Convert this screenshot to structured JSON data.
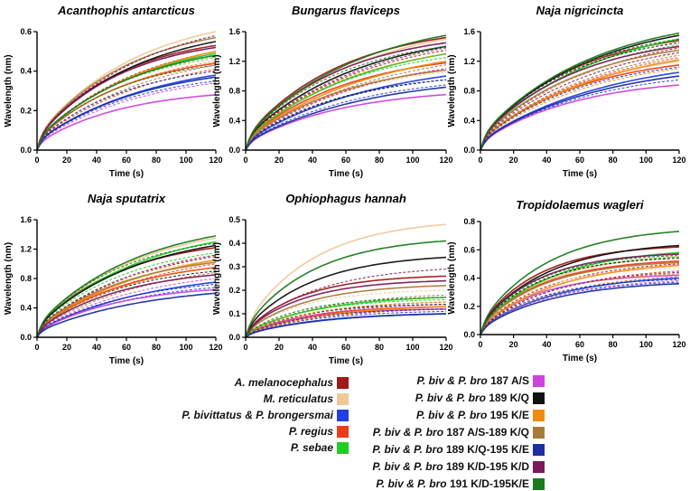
{
  "chart_data": [
    {
      "type": "line",
      "title": "Acanthophis antarcticus",
      "xlabel": "Time (s)",
      "ylabel": "Wavelength (nm)",
      "xlim": [
        0,
        120
      ],
      "ylim": [
        0,
        0.6
      ],
      "xticks": [
        0,
        20,
        40,
        60,
        80,
        100,
        120
      ],
      "yticks": [
        0.0,
        0.2,
        0.4,
        0.6
      ],
      "series_end_values": {
        "A. melanocephalus": [
          0.53,
          0.5
        ],
        "M. reticulatus": [
          0.6,
          0.46
        ],
        "P. bivittatus & P. brongersmai": [
          0.38,
          0.35
        ],
        "P. regius": [
          0.44,
          0.41
        ],
        "P. sebae": [
          0.49,
          0.47
        ],
        "P. biv & P. bro 187 A/S": [
          0.28,
          0.34
        ],
        "P. biv & P. bro 189 K/Q": [
          0.55,
          0.52
        ],
        "P. biv & P. bro 195 K/E": [
          0.5,
          0.45
        ],
        "P. biv & P. bro 187 A/S-189 K/Q": [
          0.57,
          0.43
        ],
        "P. biv & P. bro 189 K/Q-195 K/E": [
          0.37,
          0.4
        ],
        "P. biv & P. bro 189 K/D-195 K/D": [
          0.52,
          0.58
        ],
        "P. biv & P. bro 191 K/D-195K/E": [
          0.48,
          0.43
        ]
      }
    },
    {
      "type": "line",
      "title": "Bungarus flaviceps",
      "xlabel": "Time (s)",
      "ylabel": "Wavelength (nm)",
      "xlim": [
        0,
        120
      ],
      "ylim": [
        0,
        1.6
      ],
      "xticks": [
        0,
        20,
        40,
        60,
        80,
        100,
        120
      ],
      "yticks": [
        0.0,
        0.4,
        0.8,
        1.2,
        1.6
      ],
      "series_end_values": {
        "A. melanocephalus": [
          1.52,
          1.35
        ],
        "M. reticulatus": [
          1.5,
          1.05
        ],
        "P. bivittatus & P. brongersmai": [
          1.0,
          0.88
        ],
        "P. regius": [
          1.18,
          1.1
        ],
        "P. sebae": [
          1.3,
          1.25
        ],
        "P. biv & P. bro 187 A/S": [
          0.75,
          1.1
        ],
        "P. biv & P. bro 189 K/Q": [
          1.4,
          0.95
        ],
        "P. biv & P. bro 195 K/E": [
          1.2,
          1.3
        ],
        "P. biv & P. bro 187 A/S-189 K/Q": [
          1.08,
          1.15
        ],
        "P. biv & P. bro 189 K/Q-195 K/E": [
          0.85,
          0.95
        ],
        "P. biv & P. bro 189 K/D-195 K/D": [
          1.45,
          1.38
        ],
        "P. biv & P. bro 191 K/D-195K/E": [
          1.55,
          1.4
        ]
      }
    },
    {
      "type": "line",
      "title": "Naja nigricincta",
      "xlabel": "Time (s)",
      "ylabel": "Wavelength (nm)",
      "xlim": [
        0,
        120
      ],
      "ylim": [
        0,
        1.6
      ],
      "xticks": [
        0,
        20,
        40,
        60,
        80,
        100,
        120
      ],
      "yticks": [
        0.0,
        0.4,
        0.8,
        1.2,
        1.6
      ],
      "series_end_values": {
        "A. melanocephalus": [
          1.48,
          1.38
        ],
        "M. reticulatus": [
          1.2,
          1.3
        ],
        "P. bivittatus & P. brongersmai": [
          1.05,
          0.95
        ],
        "P. regius": [
          1.15,
          1.25
        ],
        "P. sebae": [
          1.5,
          1.42
        ],
        "P. biv & P. bro 187 A/S": [
          0.88,
          1.0
        ],
        "P. biv & P. bro 189 K/Q": [
          1.55,
          1.45
        ],
        "P. biv & P. bro 195 K/E": [
          1.22,
          1.1
        ],
        "P. biv & P. bro 187 A/S-189 K/Q": [
          1.35,
          1.28
        ],
        "P. biv & P. bro 189 K/Q-195 K/E": [
          1.0,
          1.12
        ],
        "P. biv & P. bro 189 K/D-195 K/D": [
          1.4,
          1.32
        ],
        "P. biv & P. bro 191 K/D-195K/E": [
          1.58,
          1.5
        ]
      }
    },
    {
      "type": "line",
      "title": "Naja sputatrix",
      "xlabel": "Time (s)",
      "ylabel": "Wavelength (nm)",
      "xlim": [
        0,
        120
      ],
      "ylim": [
        0,
        1.6
      ],
      "xticks": [
        0,
        20,
        40,
        60,
        80,
        100,
        120
      ],
      "yticks": [
        0.0,
        0.4,
        0.8,
        1.2,
        1.6
      ],
      "series_end_values": {
        "A. melanocephalus": [
          1.22,
          1.1
        ],
        "M. reticulatus": [
          1.35,
          1.05
        ],
        "P. bivittatus & P. brongersmai": [
          0.75,
          0.68
        ],
        "P. regius": [
          0.95,
          1.0
        ],
        "P. sebae": [
          1.3,
          1.15
        ],
        "P. biv & P. bro 187 A/S": [
          0.65,
          0.8
        ],
        "P. biv & P. bro 189 K/Q": [
          1.25,
          0.9
        ],
        "P. biv & P. bro 195 K/E": [
          1.05,
          0.95
        ],
        "P. biv & P. bro 187 A/S-189 K/Q": [
          1.02,
          0.88
        ],
        "P. biv & P. bro 189 K/Q-195 K/E": [
          0.6,
          0.72
        ],
        "P. biv & P. bro 189 K/D-195 K/D": [
          0.85,
          1.12
        ],
        "P. biv & P. bro 191 K/D-195K/E": [
          1.38,
          1.28
        ]
      }
    },
    {
      "type": "line",
      "title": "Ophiophagus hannah",
      "xlabel": "Time (s)",
      "ylabel": "Wavelength (nm)",
      "xlim": [
        0,
        120
      ],
      "ylim": [
        0,
        0.5
      ],
      "xticks": [
        0,
        20,
        40,
        60,
        80,
        100,
        120
      ],
      "yticks": [
        0.0,
        0.1,
        0.2,
        0.3,
        0.4,
        0.5
      ],
      "series_end_values": {
        "A. melanocephalus": [
          0.26,
          0.15
        ],
        "M. reticulatus": [
          0.48,
          0.2
        ],
        "P. bivittatus & P. brongersmai": [
          0.1,
          0.11
        ],
        "P. regius": [
          0.13,
          0.12
        ],
        "P. sebae": [
          0.17,
          0.16
        ],
        "P. biv & P. bro 187 A/S": [
          0.12,
          0.14
        ],
        "P. biv & P. bro 189 K/Q": [
          0.34,
          0.14
        ],
        "P. biv & P. bro 195 K/E": [
          0.13,
          0.15
        ],
        "P. biv & P. bro 187 A/S-189 K/Q": [
          0.22,
          0.18
        ],
        "P. biv & P. bro 189 K/Q-195 K/E": [
          0.1,
          0.12
        ],
        "P. biv & P. bro 189 K/D-195 K/D": [
          0.24,
          0.29
        ],
        "P. biv & P. bro 191 K/D-195K/E": [
          0.41,
          0.17
        ]
      }
    },
    {
      "type": "line",
      "title": "Tropidolaemus wagleri",
      "xlabel": "Time (s)",
      "ylabel": "Wavelength (nm)",
      "xlim": [
        0,
        120
      ],
      "ylim": [
        0,
        0.8
      ],
      "xticks": [
        0,
        20,
        40,
        60,
        80,
        100,
        120
      ],
      "yticks": [
        0.0,
        0.2,
        0.4,
        0.6,
        0.8
      ],
      "series_end_values": {
        "A. melanocephalus": [
          0.62,
          0.5
        ],
        "M. reticulatus": [
          0.55,
          0.47
        ],
        "P. bivittatus & P. brongersmai": [
          0.4,
          0.37
        ],
        "P. regius": [
          0.52,
          0.45
        ],
        "P. sebae": [
          0.58,
          0.55
        ],
        "P. biv & P. bro 187 A/S": [
          0.42,
          0.38
        ],
        "P. biv & P. bro 189 K/Q": [
          0.63,
          0.54
        ],
        "P. biv & P. bro 195 K/E": [
          0.49,
          0.43
        ],
        "P. biv & P. bro 187 A/S-189 K/Q": [
          0.51,
          0.41
        ],
        "P. biv & P. bro 189 K/Q-195 K/E": [
          0.36,
          0.39
        ],
        "P. biv & P. bro 189 K/D-195 K/D": [
          0.57,
          0.44
        ],
        "P. biv & P. bro 191 K/D-195K/E": [
          0.73,
          0.56
        ]
      }
    }
  ],
  "legend": {
    "left": [
      {
        "name": "A. melanocephalus",
        "label": "A. melanocephalus",
        "color": "#a01818"
      },
      {
        "name": "M. reticulatus",
        "label": "M. reticulatus",
        "color": "#f0c898"
      },
      {
        "name": "P. bivittatus & P. brongersmai",
        "label": "P. bivittatus  & P. brongersmai",
        "color": "#1f3fe0"
      },
      {
        "name": "P. regius",
        "label": "P. regius",
        "color": "#f03a18"
      },
      {
        "name": "P. sebae",
        "label": "P. sebae",
        "color": "#22cc22"
      }
    ],
    "right": [
      {
        "name": "P. biv & P. bro 187 A/S",
        "prefix": "P. biv & P. bro",
        "suffix": "187 A/S",
        "color": "#cc44dd"
      },
      {
        "name": "P. biv & P. bro 189 K/Q",
        "prefix": "P. biv & P. bro",
        "suffix": "189 K/Q",
        "color": "#111111"
      },
      {
        "name": "P. biv & P. bro 195 K/E",
        "prefix": "P. biv & P. bro",
        "suffix": "195 K/E",
        "color": "#f08c10"
      },
      {
        "name": "P. biv & P. bro 187 A/S-189 K/Q",
        "prefix": "P. biv & P. bro",
        "suffix": "187 A/S-189 K/Q",
        "color": "#a67c3a"
      },
      {
        "name": "P. biv & P. bro 189 K/Q-195 K/E",
        "prefix": "P. biv & P. bro",
        "suffix": "189 K/Q-195 K/E",
        "color": "#1c2fa0"
      },
      {
        "name": "P. biv & P. bro 189 K/D-195 K/D",
        "prefix": "P. biv & P. bro",
        "suffix": "189 K/D-195 K/D",
        "color": "#7a1a5a"
      },
      {
        "name": "P. biv & P. bro 191 K/D-195K/E",
        "prefix": "P. biv & P. bro",
        "suffix": "191 K/D-195K/E",
        "color": "#1c7a1c"
      }
    ]
  }
}
